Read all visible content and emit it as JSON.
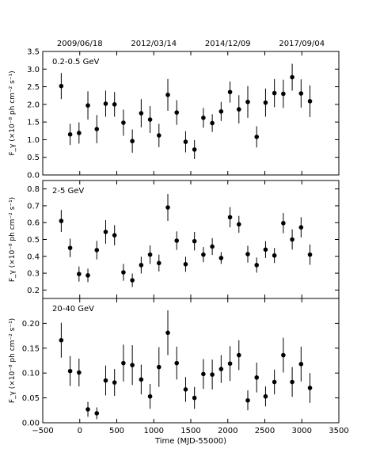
{
  "chart_data": [
    {
      "type": "scatter",
      "error_bars": true,
      "title": "0.2-0.5 GeV",
      "xlabel": "",
      "ylabel": "F_γ (×10⁻⁸ ph cm⁻² s⁻¹)",
      "ylim": [
        0.0,
        3.5
      ],
      "yticks": [
        "0.0",
        "0.5",
        "1.0",
        "1.5",
        "2.0",
        "2.5",
        "3.0",
        "3.5"
      ],
      "series": [
        {
          "x": [
            -250,
            -130,
            -10,
            110,
            230,
            350,
            470,
            590,
            710,
            830,
            950,
            1070,
            1190,
            1310,
            1430,
            1550,
            1670,
            1790,
            1910,
            2030,
            2150,
            2270,
            2390,
            2510,
            2630,
            2750,
            2870,
            2990,
            3110
          ],
          "y": [
            2.52,
            1.15,
            1.19,
            1.97,
            1.3,
            2.02,
            2.0,
            1.48,
            0.96,
            1.75,
            1.57,
            1.12,
            2.27,
            1.77,
            0.94,
            0.72,
            1.62,
            1.47,
            1.8,
            2.35,
            1.86,
            2.07,
            1.08,
            2.05,
            2.32,
            2.3,
            2.77,
            2.31,
            2.09
          ],
          "yerr": [
            0.37,
            0.3,
            0.3,
            0.4,
            0.4,
            0.37,
            0.35,
            0.37,
            0.33,
            0.4,
            0.38,
            0.33,
            0.45,
            0.35,
            0.3,
            0.27,
            0.28,
            0.25,
            0.27,
            0.3,
            0.4,
            0.45,
            0.3,
            0.4,
            0.4,
            0.4,
            0.38,
            0.4,
            0.45
          ]
        }
      ]
    },
    {
      "type": "scatter",
      "error_bars": true,
      "title": "2-5 GeV",
      "xlabel": "",
      "ylabel": "F_γ (×10⁻⁸ ph cm⁻² s⁻¹)",
      "ylim": [
        0.15,
        0.85
      ],
      "yticks": [
        "0.2",
        "0.3",
        "0.4",
        "0.5",
        "0.6",
        "0.7",
        "0.8"
      ],
      "series": [
        {
          "x": [
            -250,
            -130,
            -10,
            110,
            230,
            350,
            470,
            590,
            710,
            830,
            950,
            1070,
            1190,
            1310,
            1430,
            1550,
            1670,
            1790,
            1910,
            2030,
            2150,
            2270,
            2390,
            2510,
            2630,
            2750,
            2870,
            2990,
            3110
          ],
          "y": [
            0.61,
            0.45,
            0.295,
            0.287,
            0.437,
            0.545,
            0.525,
            0.305,
            0.258,
            0.348,
            0.41,
            0.36,
            0.69,
            0.493,
            0.353,
            0.49,
            0.41,
            0.458,
            0.39,
            0.632,
            0.59,
            0.413,
            0.348,
            0.44,
            0.405,
            0.597,
            0.5,
            0.572,
            0.41
          ],
          "yerr": [
            0.065,
            0.055,
            0.045,
            0.04,
            0.055,
            0.07,
            0.06,
            0.05,
            0.04,
            0.05,
            0.055,
            0.05,
            0.08,
            0.055,
            0.045,
            0.055,
            0.045,
            0.05,
            0.035,
            0.06,
            0.05,
            0.05,
            0.045,
            0.05,
            0.045,
            0.06,
            0.06,
            0.06,
            0.06
          ]
        }
      ]
    },
    {
      "type": "scatter",
      "error_bars": true,
      "title": "20-40 GeV",
      "xlabel": "Time (MJD-55000)",
      "ylabel": "F_γ (×10⁻⁸ ph cm⁻² s⁻¹)",
      "xlim": [
        -500,
        3500
      ],
      "ylim": [
        0.0,
        0.25
      ],
      "xticks": [
        "−500",
        "0",
        "500",
        "1000",
        "1500",
        "2000",
        "2500",
        "3000",
        "3500"
      ],
      "yticks": [
        "0.00",
        "0.05",
        "0.10",
        "0.15",
        "0.20"
      ],
      "series": [
        {
          "x": [
            -250,
            -130,
            -10,
            110,
            230,
            350,
            470,
            590,
            710,
            830,
            950,
            1070,
            1190,
            1310,
            1430,
            1550,
            1670,
            1790,
            1910,
            2030,
            2150,
            2270,
            2390,
            2510,
            2630,
            2750,
            2870,
            2990,
            3110
          ],
          "y": [
            0.166,
            0.104,
            0.101,
            0.027,
            0.019,
            0.085,
            0.081,
            0.12,
            0.116,
            0.087,
            0.053,
            0.112,
            0.181,
            0.12,
            0.067,
            0.05,
            0.098,
            0.097,
            0.108,
            0.119,
            0.136,
            0.045,
            0.091,
            0.053,
            0.082,
            0.136,
            0.082,
            0.118,
            0.07
          ],
          "yerr": [
            0.035,
            0.03,
            0.028,
            0.015,
            0.012,
            0.03,
            0.027,
            0.037,
            0.04,
            0.03,
            0.025,
            0.04,
            0.045,
            0.033,
            0.025,
            0.022,
            0.03,
            0.03,
            0.028,
            0.035,
            0.03,
            0.02,
            0.03,
            0.02,
            0.025,
            0.035,
            0.03,
            0.035,
            0.03
          ]
        }
      ]
    }
  ],
  "top_axis": {
    "dates": [
      "2009/06/18",
      "2012/03/14",
      "2014/12/09",
      "2017/09/04"
    ],
    "positions_mjd": [
      0,
      1000,
      2000,
      3000
    ]
  },
  "x_range": [
    -500,
    3500
  ],
  "marker_color": "#000000"
}
